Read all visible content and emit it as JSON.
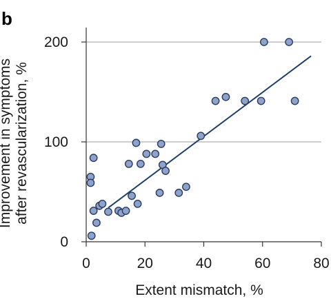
{
  "panel_label": "b",
  "chart_data": {
    "type": "scatter",
    "title": "",
    "xlabel": "Extent mismatch, %",
    "ylabel_lines": [
      "Improvement in symptoms",
      "after revascularization, %"
    ],
    "xlim": [
      0,
      80
    ],
    "ylim": [
      0,
      200
    ],
    "x_ticks": [
      0,
      20,
      40,
      60,
      80
    ],
    "y_ticks": [
      0,
      100,
      200
    ],
    "grid": "horizontal",
    "legend": "none",
    "colors": {
      "point_fill": "#8ea3c9",
      "point_stroke": "#2b3b63",
      "line": "#1f3f66",
      "grid": "#b0b0b0"
    },
    "points": [
      {
        "x": 1.5,
        "y": 65
      },
      {
        "x": 1.5,
        "y": 59
      },
      {
        "x": 1.8,
        "y": 6
      },
      {
        "x": 2.5,
        "y": 84
      },
      {
        "x": 2.5,
        "y": 31
      },
      {
        "x": 3.5,
        "y": 19
      },
      {
        "x": 4.5,
        "y": 36
      },
      {
        "x": 5.5,
        "y": 38
      },
      {
        "x": 7.5,
        "y": 30
      },
      {
        "x": 11,
        "y": 31
      },
      {
        "x": 12,
        "y": 29
      },
      {
        "x": 13.5,
        "y": 31
      },
      {
        "x": 14.5,
        "y": 78
      },
      {
        "x": 15.5,
        "y": 46
      },
      {
        "x": 17,
        "y": 99
      },
      {
        "x": 17.5,
        "y": 38
      },
      {
        "x": 18.5,
        "y": 78
      },
      {
        "x": 20.5,
        "y": 88
      },
      {
        "x": 23.5,
        "y": 88
      },
      {
        "x": 25,
        "y": 49
      },
      {
        "x": 25.5,
        "y": 98
      },
      {
        "x": 26,
        "y": 77
      },
      {
        "x": 27,
        "y": 71
      },
      {
        "x": 31.5,
        "y": 49
      },
      {
        "x": 34,
        "y": 55
      },
      {
        "x": 39,
        "y": 106
      },
      {
        "x": 44,
        "y": 141
      },
      {
        "x": 47.5,
        "y": 145
      },
      {
        "x": 54,
        "y": 141
      },
      {
        "x": 59.5,
        "y": 141
      },
      {
        "x": 60.5,
        "y": 200
      },
      {
        "x": 69,
        "y": 200
      },
      {
        "x": 71,
        "y": 141
      }
    ],
    "trend_line": {
      "x": [
        7.5,
        76.5
      ],
      "y": [
        34,
        186
      ]
    }
  }
}
